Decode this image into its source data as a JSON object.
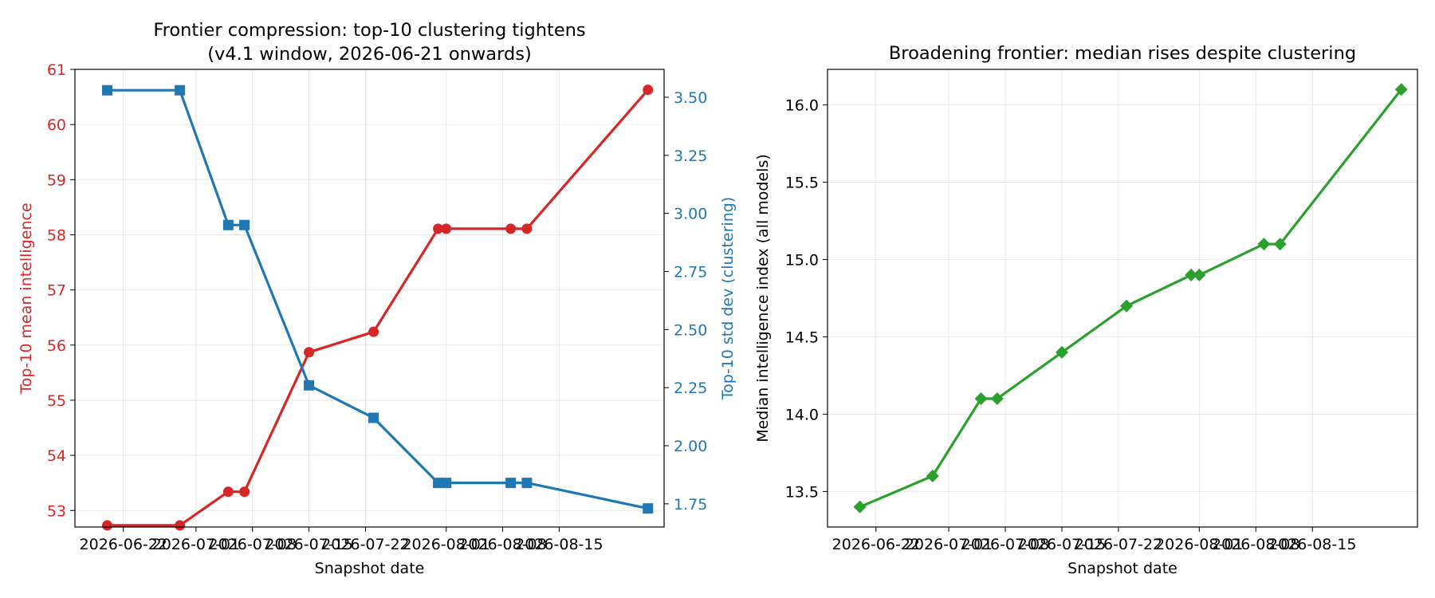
{
  "chart_data": [
    {
      "type": "line",
      "title": "Frontier compression: top-10 clustering tightens\n(v4.1 window, 2026-06-21 onwards)",
      "xlabel": "Snapshot date",
      "ylabel": "Top-10 mean intelligence",
      "y2label": "Top-10 std dev (clustering)",
      "x": [
        "2026-06-20",
        "2026-06-29",
        "2026-07-05",
        "2026-07-07",
        "2026-07-15",
        "2026-07-23",
        "2026-07-31",
        "2026-08-01",
        "2026-08-09",
        "2026-08-11",
        "2026-08-26"
      ],
      "xlim": [
        "2026-06-16",
        "2026-08-28"
      ],
      "xticks": [
        "2026-06-22",
        "2026-07-01",
        "2026-07-08",
        "2026-07-15",
        "2026-07-22",
        "2026-08-01",
        "2026-08-08",
        "2026-08-15"
      ],
      "ylim": [
        52.7,
        61.0
      ],
      "yticks": [
        53,
        54,
        55,
        56,
        57,
        58,
        59,
        60,
        61
      ],
      "y2lim": [
        1.65,
        3.62
      ],
      "y2ticks": [
        "1.75",
        "2.00",
        "2.25",
        "2.50",
        "2.75",
        "3.00",
        "3.25",
        "3.50"
      ],
      "grid": true,
      "series": [
        {
          "axis": "left",
          "color": "#d62728",
          "marker": "circle",
          "values": [
            52.73,
            52.73,
            53.34,
            53.34,
            55.87,
            56.24,
            58.11,
            58.11,
            58.11,
            58.11,
            60.63
          ]
        },
        {
          "axis": "right",
          "color": "#1f77b4",
          "marker": "square",
          "values": [
            3.53,
            3.53,
            2.95,
            2.95,
            2.26,
            2.12,
            1.84,
            1.84,
            1.84,
            1.84,
            1.73
          ]
        }
      ]
    },
    {
      "type": "line",
      "title": "Broadening frontier: median rises despite clustering",
      "xlabel": "Snapshot date",
      "ylabel": "Median intelligence index (all models)",
      "x": [
        "2026-06-20",
        "2026-06-29",
        "2026-07-05",
        "2026-07-07",
        "2026-07-15",
        "2026-07-23",
        "2026-07-31",
        "2026-08-01",
        "2026-08-09",
        "2026-08-11",
        "2026-08-26"
      ],
      "xlim": [
        "2026-06-16",
        "2026-08-28"
      ],
      "xticks": [
        "2026-06-22",
        "2026-07-01",
        "2026-07-08",
        "2026-07-15",
        "2026-07-22",
        "2026-08-01",
        "2026-08-08",
        "2026-08-15"
      ],
      "ylim": [
        13.27,
        16.23
      ],
      "yticks": [
        "13.5",
        "14.0",
        "14.5",
        "15.0",
        "15.5",
        "16.0"
      ],
      "grid": true,
      "series": [
        {
          "axis": "left",
          "color": "#2ca02c",
          "marker": "diamond",
          "values": [
            13.4,
            13.6,
            14.1,
            14.1,
            14.4,
            14.7,
            14.9,
            14.9,
            15.1,
            15.1,
            16.1
          ]
        }
      ]
    }
  ]
}
